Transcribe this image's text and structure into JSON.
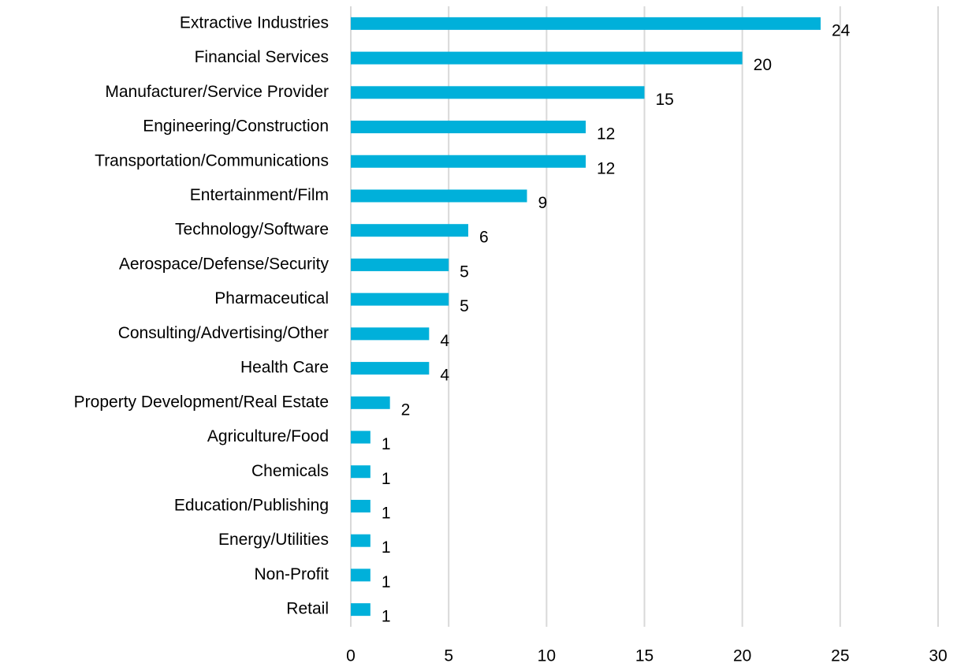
{
  "chart_data": {
    "type": "bar",
    "orientation": "horizontal",
    "categories": [
      "Extractive Industries",
      "Financial Services",
      "Manufacturer/Service Provider",
      "Engineering/Construction",
      "Transportation/Communications",
      "Entertainment/Film",
      "Technology/Software",
      "Aerospace/Defense/Security",
      "Pharmaceutical",
      "Consulting/Advertising/Other",
      "Health Care",
      "Property Development/Real Estate",
      "Agriculture/Food",
      "Chemicals",
      "Education/Publishing",
      "Energy/Utilities",
      "Non-Profit",
      "Retail"
    ],
    "values": [
      24,
      20,
      15,
      12,
      12,
      9,
      6,
      5,
      5,
      4,
      4,
      2,
      1,
      1,
      1,
      1,
      1,
      1
    ],
    "color": "#00b0da",
    "xlim": [
      0,
      30
    ],
    "xticks": [
      0,
      5,
      10,
      15,
      20,
      25,
      30
    ],
    "grid": true
  }
}
